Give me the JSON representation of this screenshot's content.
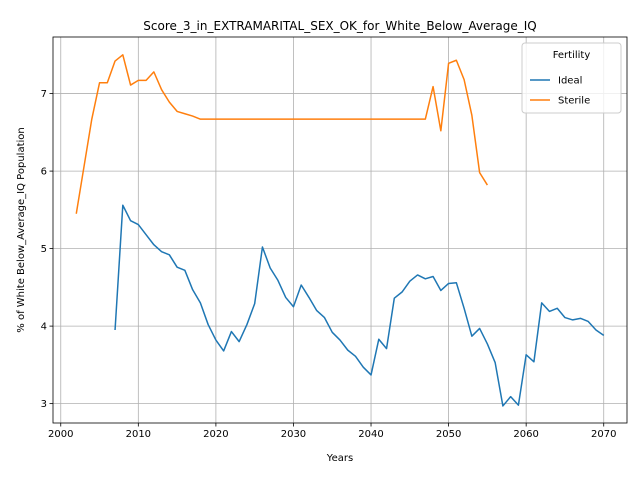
{
  "chart_data": {
    "type": "line",
    "title": "Score_3_in_EXTRAMARITAL_SEX_OK_for_White_Below_Average_IQ",
    "xlabel": "Years",
    "ylabel": "% of White Below_Average_IQ Population",
    "xlim": [
      1999,
      2073
    ],
    "ylim": [
      2.75,
      7.73
    ],
    "xticks": [
      2000,
      2010,
      2020,
      2030,
      2040,
      2050,
      2060,
      2070
    ],
    "yticks": [
      3,
      4,
      5,
      6,
      7
    ],
    "grid": true,
    "legend": {
      "title": "Fertility",
      "position": "top-right"
    },
    "series": [
      {
        "name": "Ideal",
        "color": "#1f77b4",
        "x": [
          2007,
          2008,
          2009,
          2010,
          2011,
          2012,
          2013,
          2014,
          2015,
          2016,
          2017,
          2018,
          2019,
          2020,
          2021,
          2022,
          2023,
          2024,
          2025,
          2026,
          2027,
          2028,
          2029,
          2030,
          2031,
          2032,
          2033,
          2034,
          2035,
          2036,
          2037,
          2038,
          2039,
          2040,
          2041,
          2042,
          2043,
          2044,
          2045,
          2046,
          2047,
          2048,
          2049,
          2050,
          2051,
          2052,
          2053,
          2054,
          2055,
          2056,
          2057,
          2058,
          2059,
          2060,
          2061,
          2062,
          2063,
          2064,
          2065,
          2066,
          2067,
          2068,
          2069,
          2070
        ],
        "y": [
          3.95,
          5.56,
          5.36,
          5.31,
          5.18,
          5.05,
          4.96,
          4.92,
          4.76,
          4.72,
          4.47,
          4.3,
          4.02,
          3.82,
          3.68,
          3.93,
          3.8,
          4.02,
          4.29,
          5.02,
          4.75,
          4.59,
          4.37,
          4.25,
          4.53,
          4.37,
          4.2,
          4.11,
          3.92,
          3.82,
          3.69,
          3.61,
          3.47,
          3.37,
          3.83,
          3.71,
          4.36,
          4.44,
          4.58,
          4.66,
          4.61,
          4.64,
          4.46,
          4.55,
          4.56,
          4.23,
          3.87,
          3.97,
          3.77,
          3.53,
          2.97,
          3.09,
          2.98,
          3.63,
          3.54,
          4.3,
          4.19,
          4.23,
          4.11,
          4.08,
          4.1,
          4.06,
          3.95,
          3.88
        ]
      },
      {
        "name": "Sterile",
        "color": "#ff7f0e",
        "x": [
          2002,
          2003,
          2004,
          2005,
          2006,
          2007,
          2008,
          2009,
          2010,
          2011,
          2012,
          2013,
          2014,
          2015,
          2016,
          2017,
          2018,
          2019,
          2020,
          2021,
          2022,
          2023,
          2024,
          2025,
          2026,
          2027,
          2028,
          2029,
          2030,
          2031,
          2032,
          2033,
          2034,
          2035,
          2036,
          2037,
          2038,
          2039,
          2040,
          2041,
          2042,
          2043,
          2044,
          2045,
          2046,
          2047,
          2048,
          2049,
          2050,
          2051,
          2052,
          2053,
          2054,
          2055
        ],
        "y": [
          5.45,
          6.06,
          6.67,
          7.14,
          7.14,
          7.42,
          7.5,
          7.11,
          7.17,
          7.17,
          7.28,
          7.05,
          6.89,
          6.77,
          6.74,
          6.71,
          6.67,
          6.67,
          6.67,
          6.67,
          6.67,
          6.67,
          6.67,
          6.67,
          6.67,
          6.67,
          6.67,
          6.67,
          6.67,
          6.67,
          6.67,
          6.67,
          6.67,
          6.67,
          6.67,
          6.67,
          6.67,
          6.67,
          6.67,
          6.67,
          6.67,
          6.67,
          6.67,
          6.67,
          6.67,
          6.67,
          7.09,
          6.52,
          7.39,
          7.43,
          7.18,
          6.72,
          5.98,
          5.82
        ]
      }
    ]
  }
}
